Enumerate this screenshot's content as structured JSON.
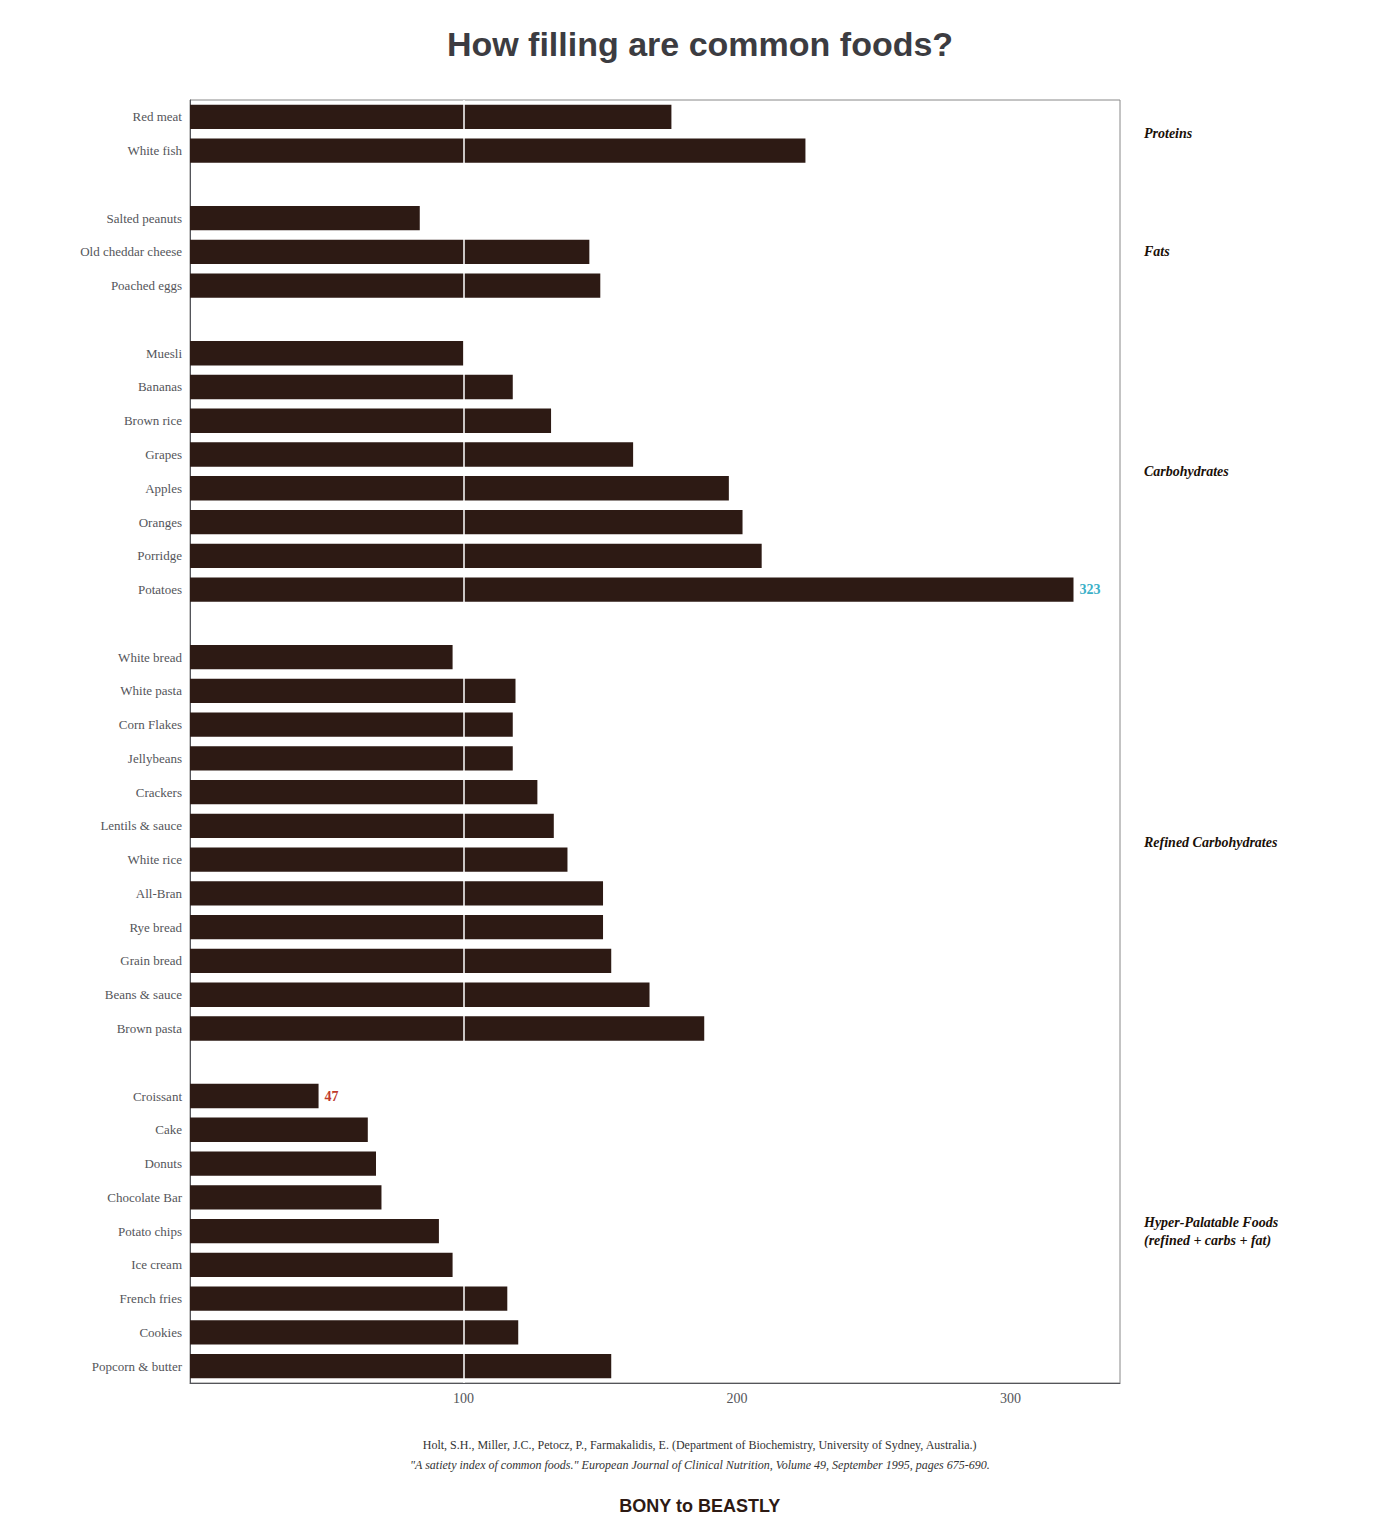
{
  "chart_data": {
    "type": "bar",
    "orientation": "horizontal",
    "title": "How filling are common foods?",
    "categories": [
      "Red meat",
      "White fish",
      null,
      "Salted peanuts",
      "Old cheddar cheese",
      "Poached eggs",
      null,
      "Muesli",
      "Bananas",
      "Brown rice",
      "Grapes",
      "Apples",
      "Oranges",
      "Porridge",
      "Potatoes",
      null,
      "White bread",
      "White pasta",
      "Corn Flakes",
      "Jellybeans",
      "Crackers",
      "Lentils & sauce",
      "White rice",
      "All-Bran",
      "Rye bread",
      "Grain bread",
      "Beans & sauce",
      "Brown pasta",
      null,
      "Croissant",
      "Cake",
      "Donuts",
      "Chocolate Bar",
      "Potato chips",
      "Ice cream",
      "French fries",
      "Cookies",
      "Popcorn & butter"
    ],
    "values": [
      176,
      225,
      null,
      84,
      146,
      150,
      null,
      100,
      118,
      132,
      162,
      197,
      202,
      209,
      323,
      null,
      96,
      119,
      118,
      118,
      127,
      133,
      138,
      151,
      151,
      154,
      168,
      188,
      null,
      47,
      65,
      68,
      70,
      91,
      96,
      116,
      120,
      154
    ],
    "color": "#2d1a14",
    "xlim": [
      0,
      340
    ],
    "xticks": [
      100,
      200,
      300
    ],
    "grid": false,
    "vline": {
      "x": 100,
      "color": "#ffffff"
    },
    "annotations": [
      {
        "text": "323",
        "category": "Potatoes",
        "value": 323,
        "color": "#3ab0c8"
      },
      {
        "text": "47",
        "category": "Croissant",
        "value": 47,
        "color": "#c0392b"
      }
    ],
    "group_labels": [
      {
        "text": "Proteins",
        "from": "Red meat",
        "to": "White fish"
      },
      {
        "text": "Fats",
        "from": "Salted peanuts",
        "to": "Poached eggs"
      },
      {
        "text": "Carbohydrates",
        "from": "Muesli",
        "to": "Potatoes"
      },
      {
        "text": "Refined Carbohydrates",
        "from": "White bread",
        "to": "Brown pasta"
      },
      {
        "text": "Hyper-Palatable Foods\n(refined + carbs + fat)",
        "from": "Croissant",
        "to": "Popcorn & butter"
      }
    ],
    "footnotes": [
      "Holt, S.H., Miller, J.C., Petocz, P., Farmakalidis, E. (Department of Biochemistry, University of Sydney, Australia.)",
      "\"A satiety index of common foods.\" European Journal of Clinical Nutrition, Volume 49, September 1995, pages 675-690."
    ],
    "brand": "BONY to BEASTLY"
  }
}
